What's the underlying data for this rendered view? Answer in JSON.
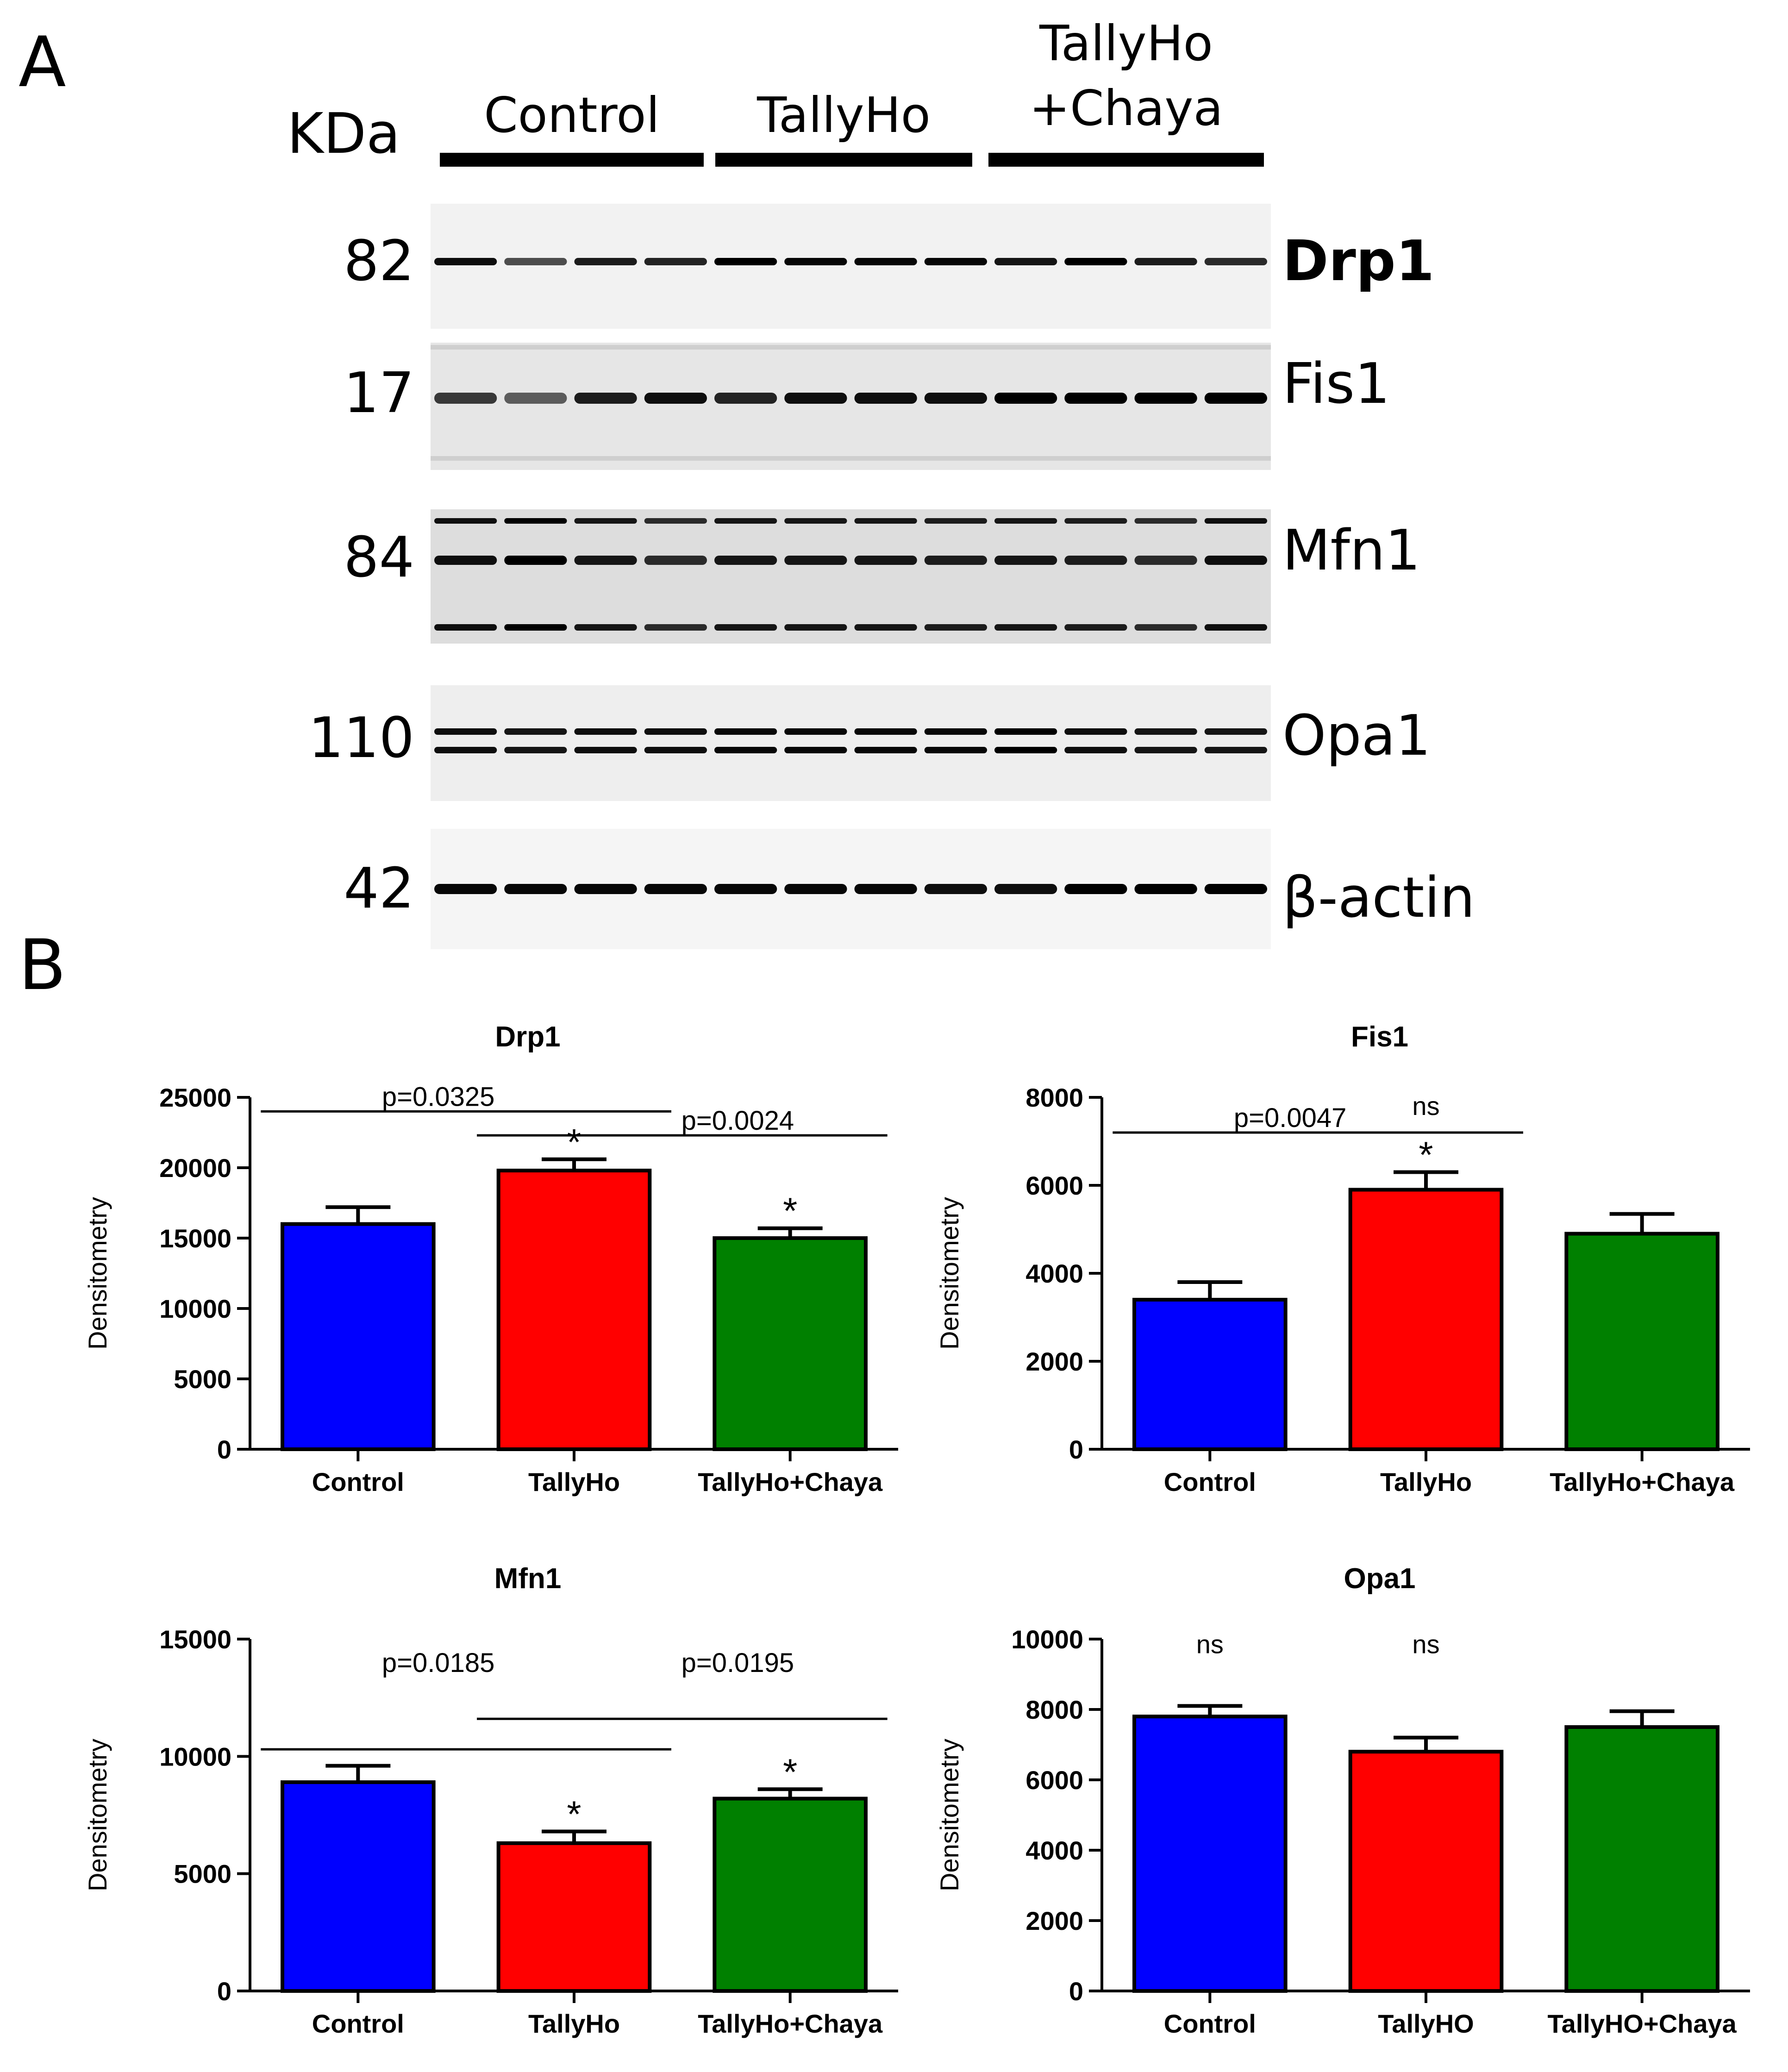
{
  "panel_a": {
    "letter": "A",
    "kda_label": "KDa",
    "groups": [
      "Control",
      "TallyHo",
      "TallyHo\n+Chaya"
    ],
    "group_lines": [
      [
        "Control"
      ],
      [
        "TallyHo"
      ],
      [
        "TallyHo",
        "+Chaya"
      ]
    ],
    "bands": [
      {
        "kda": "82",
        "protein": "Drp1",
        "bold": true
      },
      {
        "kda": "17",
        "protein": "Fis1",
        "bold": false
      },
      {
        "kda": "84",
        "protein": "Mfn1",
        "bold": false
      },
      {
        "kda": "110",
        "protein": "Opa1",
        "bold": false
      },
      {
        "kda": "42",
        "protein": "β-actin",
        "bold": false
      }
    ],
    "lanes_per_group": 4
  },
  "panel_b": {
    "letter": "B"
  },
  "colors": {
    "control": "#0000ff",
    "tallyho": "#ff0000",
    "chaya": "#008000"
  },
  "chart_data": [
    {
      "type": "bar",
      "title": "Drp1",
      "ylabel": "Densitometry",
      "categories": [
        "Control",
        "TallyHo",
        "TallyHo+Chaya"
      ],
      "values": [
        16000,
        19800,
        15000
      ],
      "errors": [
        1200,
        800,
        700
      ],
      "ylim": [
        0,
        25000
      ],
      "yticks": [
        0,
        5000,
        10000,
        15000,
        20000,
        25000
      ],
      "stars": [
        false,
        true,
        true
      ],
      "annotations": [
        {
          "text": "p=0.0325",
          "from": 0,
          "to": 1,
          "level": 24000
        },
        {
          "text": "p=0.0024",
          "from": 1,
          "to": 2,
          "level": 22300
        }
      ],
      "ns": []
    },
    {
      "type": "bar",
      "title": "Fis1",
      "ylabel": "Densitometry",
      "categories": [
        "Control",
        "TallyHo",
        "TallyHo+Chaya"
      ],
      "values": [
        3400,
        5900,
        4900
      ],
      "errors": [
        400,
        400,
        450
      ],
      "ylim": [
        0,
        8000
      ],
      "yticks": [
        0,
        2000,
        4000,
        6000,
        8000
      ],
      "stars": [
        false,
        true,
        false
      ],
      "annotations": [
        {
          "text": "p=0.0047",
          "from": 0,
          "to": 1,
          "level": 7200
        }
      ],
      "ns": [
        {
          "text": "ns",
          "position": 1.5,
          "level": 7600
        }
      ]
    },
    {
      "type": "bar",
      "title": "Mfn1",
      "ylabel": "Densitometry",
      "categories": [
        "Control",
        "TallyHo",
        "TallyHo+Chaya"
      ],
      "values": [
        8900,
        6300,
        8200
      ],
      "errors": [
        700,
        500,
        400
      ],
      "ylim": [
        0,
        15000
      ],
      "yticks": [
        0,
        5000,
        10000,
        15000
      ],
      "stars": [
        false,
        true,
        true
      ],
      "annotations": [
        {
          "text": "p=0.0185",
          "from": 0,
          "to": 1,
          "level": 10300,
          "label_level": 13600
        },
        {
          "text": "p=0.0195",
          "from": 1,
          "to": 2,
          "level": 11600,
          "label_level": 13600
        }
      ],
      "ns": []
    },
    {
      "type": "bar",
      "title": "Opa1",
      "ylabel": "Densitometry",
      "categories": [
        "Control",
        "TallyHO",
        "TallyHO+Chaya"
      ],
      "values": [
        7800,
        6800,
        7500
      ],
      "errors": [
        300,
        400,
        450
      ],
      "ylim": [
        0,
        10000
      ],
      "yticks": [
        0,
        2000,
        4000,
        6000,
        8000,
        10000
      ],
      "stars": [
        false,
        false,
        false
      ],
      "annotations": [],
      "ns": [
        {
          "text": "ns",
          "position": 0.5,
          "level": 9600
        },
        {
          "text": "ns",
          "position": 1.5,
          "level": 9600
        }
      ]
    }
  ]
}
